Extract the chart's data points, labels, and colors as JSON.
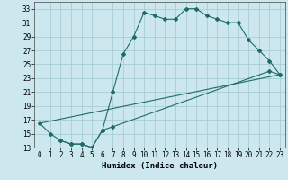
{
  "xlabel": "Humidex (Indice chaleur)",
  "bg_color": "#cce8ee",
  "line_color": "#1e6b6b",
  "grid_color": "#a8cdd4",
  "xlim": [
    -0.5,
    23.5
  ],
  "ylim": [
    13,
    34
  ],
  "xticks": [
    0,
    1,
    2,
    3,
    4,
    5,
    6,
    7,
    8,
    9,
    10,
    11,
    12,
    13,
    14,
    15,
    16,
    17,
    18,
    19,
    20,
    21,
    22,
    23
  ],
  "yticks": [
    13,
    15,
    17,
    19,
    21,
    23,
    25,
    27,
    29,
    31,
    33
  ],
  "line1_x": [
    0,
    1,
    2,
    3,
    4,
    5,
    6,
    7,
    8,
    9,
    10,
    11,
    12,
    13,
    14,
    15,
    16,
    17,
    18,
    19,
    20,
    21,
    22,
    23
  ],
  "line1_y": [
    16.5,
    15.0,
    14.0,
    13.5,
    13.5,
    13.0,
    15.5,
    21.0,
    26.5,
    29.0,
    32.5,
    32.0,
    31.5,
    31.5,
    33.0,
    33.0,
    32.0,
    31.5,
    31.0,
    31.0,
    28.5,
    27.0,
    25.5,
    23.5
  ],
  "line2_x": [
    2,
    3,
    4,
    5,
    6,
    7,
    22,
    23
  ],
  "line2_y": [
    14.0,
    13.5,
    13.5,
    13.0,
    15.5,
    16.0,
    24.0,
    23.5
  ],
  "line3_x": [
    0,
    23
  ],
  "line3_y": [
    16.5,
    23.5
  ],
  "tick_fontsize": 5.5,
  "label_fontsize": 6.5,
  "linewidth": 0.8,
  "markersize": 2.0
}
